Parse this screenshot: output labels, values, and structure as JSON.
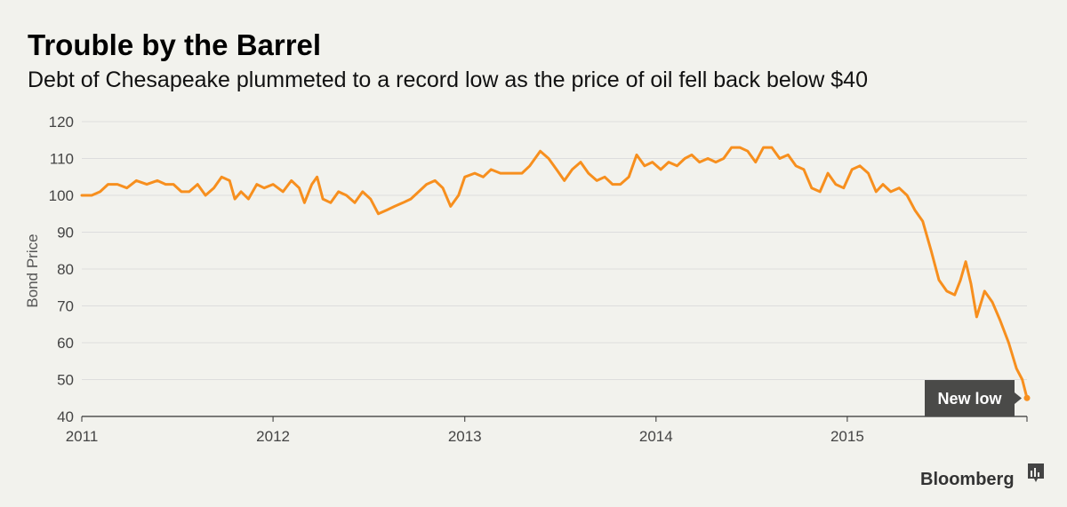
{
  "header": {
    "title": "Trouble by the Barrel",
    "subtitle": "Debt of Chesapeake plummeted to a record low as the price of oil fell back below $40"
  },
  "footer": {
    "brand": "Bloomberg",
    "brand_icon": "bloomberg-chart-icon"
  },
  "colors": {
    "background": "#f2f2ed",
    "line": "#f78f1e",
    "grid": "#dddddd",
    "callout": "#4a4a48"
  },
  "chart_data": {
    "type": "line",
    "title": "Trouble by the Barrel",
    "subtitle": "Debt of Chesapeake plummeted to a record low as the price of oil fell back below $40",
    "xlabel": "",
    "ylabel": "Bond Price",
    "ylim": [
      40,
      120
    ],
    "yticks": [
      40,
      50,
      60,
      70,
      80,
      90,
      100,
      110,
      120
    ],
    "xlim": [
      "2011-01-01",
      "2015-12-10"
    ],
    "xticks": [
      {
        "label": "2011",
        "date": "2011-01-01"
      },
      {
        "label": "2012",
        "date": "2012-01-01"
      },
      {
        "label": "2013",
        "date": "2013-01-01"
      },
      {
        "label": "2014",
        "date": "2014-01-01"
      },
      {
        "label": "2015",
        "date": "2015-01-01"
      }
    ],
    "grid": true,
    "annotation": {
      "text": "New low",
      "date": "2015-12-10",
      "value": 45
    },
    "series": [
      {
        "name": "",
        "color": "#f78f1e",
        "points": [
          [
            "2011-01-01",
            100
          ],
          [
            "2011-01-20",
            100
          ],
          [
            "2011-02-05",
            101
          ],
          [
            "2011-02-20",
            103
          ],
          [
            "2011-03-10",
            103
          ],
          [
            "2011-03-28",
            102
          ],
          [
            "2011-04-15",
            104
          ],
          [
            "2011-05-05",
            103
          ],
          [
            "2011-05-25",
            104
          ],
          [
            "2011-06-10",
            103
          ],
          [
            "2011-06-25",
            103
          ],
          [
            "2011-07-10",
            101
          ],
          [
            "2011-07-25",
            101
          ],
          [
            "2011-08-10",
            103
          ],
          [
            "2011-08-25",
            100
          ],
          [
            "2011-09-10",
            102
          ],
          [
            "2011-09-25",
            105
          ],
          [
            "2011-10-10",
            104
          ],
          [
            "2011-10-20",
            99
          ],
          [
            "2011-11-01",
            101
          ],
          [
            "2011-11-15",
            99
          ],
          [
            "2011-12-01",
            103
          ],
          [
            "2011-12-15",
            102
          ],
          [
            "2012-01-01",
            103
          ],
          [
            "2012-01-20",
            101
          ],
          [
            "2012-02-05",
            104
          ],
          [
            "2012-02-20",
            102
          ],
          [
            "2012-03-01",
            98
          ],
          [
            "2012-03-15",
            103
          ],
          [
            "2012-03-25",
            105
          ],
          [
            "2012-04-05",
            99
          ],
          [
            "2012-04-20",
            98
          ],
          [
            "2012-05-05",
            101
          ],
          [
            "2012-05-20",
            100
          ],
          [
            "2012-06-05",
            98
          ],
          [
            "2012-06-20",
            101
          ],
          [
            "2012-07-05",
            99
          ],
          [
            "2012-07-20",
            95
          ],
          [
            "2012-08-05",
            96
          ],
          [
            "2012-08-20",
            97
          ],
          [
            "2012-09-05",
            98
          ],
          [
            "2012-09-20",
            99
          ],
          [
            "2012-10-05",
            101
          ],
          [
            "2012-10-20",
            103
          ],
          [
            "2012-11-05",
            104
          ],
          [
            "2012-11-20",
            102
          ],
          [
            "2012-12-05",
            97
          ],
          [
            "2012-12-20",
            100
          ],
          [
            "2013-01-01",
            105
          ],
          [
            "2013-01-20",
            106
          ],
          [
            "2013-02-05",
            105
          ],
          [
            "2013-02-20",
            107
          ],
          [
            "2013-03-10",
            106
          ],
          [
            "2013-04-01",
            106
          ],
          [
            "2013-04-20",
            106
          ],
          [
            "2013-05-05",
            108
          ],
          [
            "2013-05-25",
            112
          ],
          [
            "2013-06-10",
            110
          ],
          [
            "2013-06-25",
            107
          ],
          [
            "2013-07-10",
            104
          ],
          [
            "2013-07-25",
            107
          ],
          [
            "2013-08-10",
            109
          ],
          [
            "2013-08-25",
            106
          ],
          [
            "2013-09-10",
            104
          ],
          [
            "2013-09-25",
            105
          ],
          [
            "2013-10-10",
            103
          ],
          [
            "2013-10-25",
            103
          ],
          [
            "2013-11-10",
            105
          ],
          [
            "2013-11-25",
            111
          ],
          [
            "2013-12-10",
            108
          ],
          [
            "2013-12-25",
            109
          ],
          [
            "2014-01-10",
            107
          ],
          [
            "2014-01-25",
            109
          ],
          [
            "2014-02-10",
            108
          ],
          [
            "2014-02-25",
            110
          ],
          [
            "2014-03-10",
            111
          ],
          [
            "2014-03-25",
            109
          ],
          [
            "2014-04-10",
            110
          ],
          [
            "2014-04-25",
            109
          ],
          [
            "2014-05-10",
            110
          ],
          [
            "2014-05-25",
            113
          ],
          [
            "2014-06-10",
            113
          ],
          [
            "2014-06-25",
            112
          ],
          [
            "2014-07-10",
            109
          ],
          [
            "2014-07-25",
            113
          ],
          [
            "2014-08-10",
            113
          ],
          [
            "2014-08-25",
            110
          ],
          [
            "2014-09-10",
            111
          ],
          [
            "2014-09-25",
            108
          ],
          [
            "2014-10-10",
            107
          ],
          [
            "2014-10-25",
            102
          ],
          [
            "2014-11-10",
            101
          ],
          [
            "2014-11-25",
            106
          ],
          [
            "2014-12-10",
            103
          ],
          [
            "2014-12-25",
            102
          ],
          [
            "2015-01-10",
            107
          ],
          [
            "2015-01-25",
            108
          ],
          [
            "2015-02-10",
            106
          ],
          [
            "2015-02-25",
            101
          ],
          [
            "2015-03-10",
            103
          ],
          [
            "2015-03-25",
            101
          ],
          [
            "2015-04-10",
            102
          ],
          [
            "2015-04-25",
            100
          ],
          [
            "2015-05-10",
            96
          ],
          [
            "2015-05-25",
            93
          ],
          [
            "2015-06-10",
            85
          ],
          [
            "2015-06-25",
            77
          ],
          [
            "2015-07-10",
            74
          ],
          [
            "2015-07-25",
            73
          ],
          [
            "2015-08-05",
            77
          ],
          [
            "2015-08-15",
            82
          ],
          [
            "2015-08-25",
            76
          ],
          [
            "2015-09-05",
            67
          ],
          [
            "2015-09-20",
            74
          ],
          [
            "2015-10-05",
            71
          ],
          [
            "2015-10-20",
            66
          ],
          [
            "2015-11-05",
            60
          ],
          [
            "2015-11-20",
            53
          ],
          [
            "2015-12-01",
            50
          ],
          [
            "2015-12-10",
            45
          ]
        ]
      }
    ]
  }
}
